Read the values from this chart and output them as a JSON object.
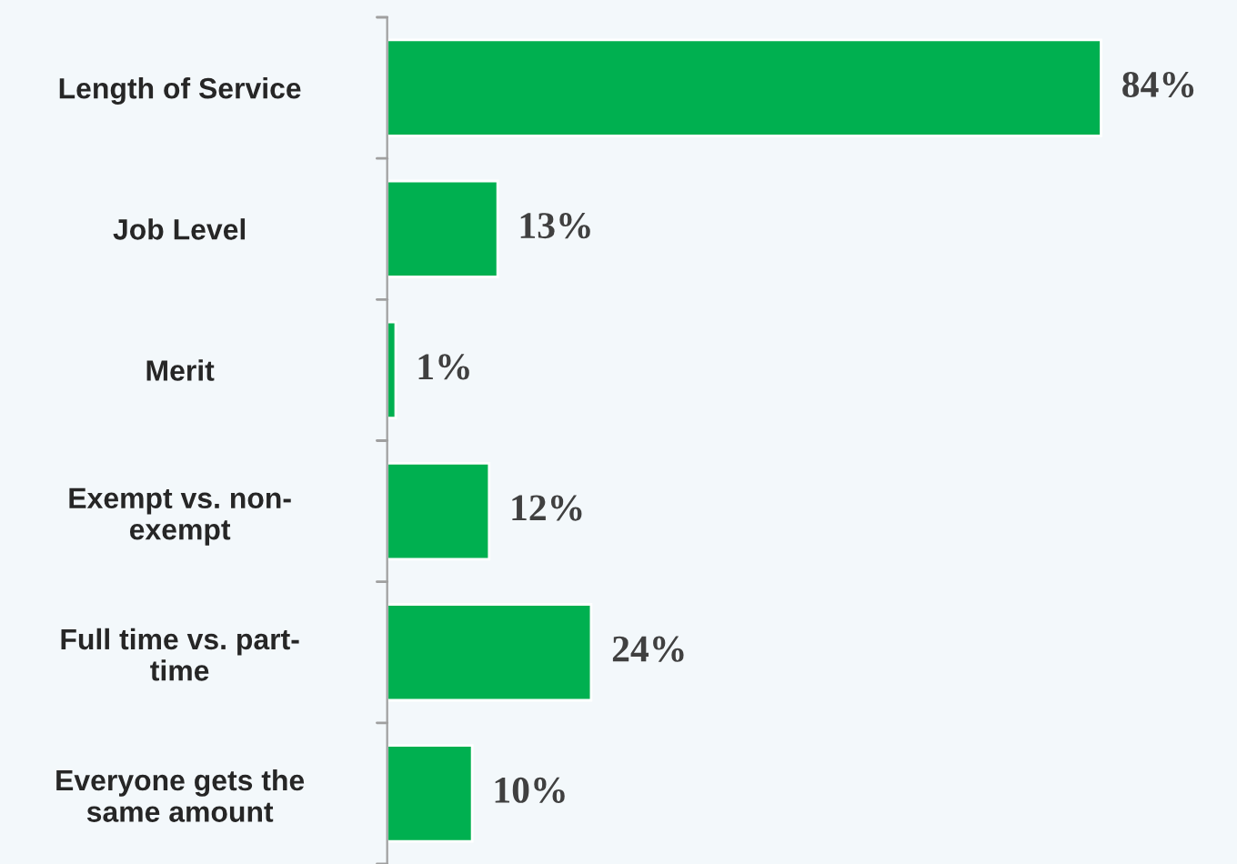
{
  "chart_data": {
    "type": "bar",
    "orientation": "horizontal",
    "categories": [
      "Length of Service",
      "Job Level",
      "Merit",
      "Exempt vs. non-\nexempt",
      "Full time vs. part-\ntime",
      "Everyone gets the\nsame amount"
    ],
    "values": [
      84,
      13,
      1,
      12,
      24,
      10
    ],
    "value_labels": [
      "84%",
      "13%",
      "1%",
      "12%",
      "24%",
      "10%"
    ],
    "color": "#00b050",
    "xlim": [
      0,
      100
    ],
    "tick_labels": "y",
    "grid": false,
    "legend": false
  }
}
